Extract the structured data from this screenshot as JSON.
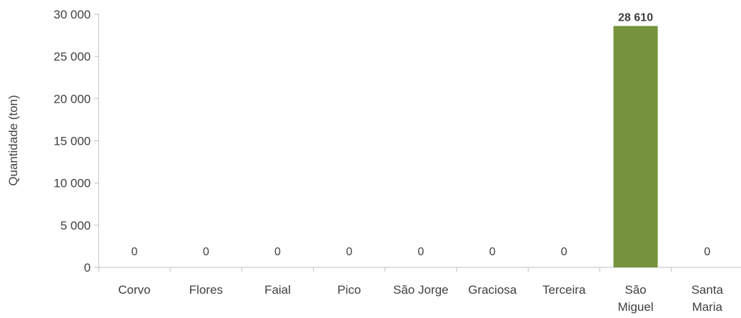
{
  "chart_data": {
    "type": "bar",
    "title": "",
    "xlabel": "",
    "ylabel": "Quantidade (ton)",
    "ylim": [
      0,
      30000
    ],
    "yticks": [
      0,
      5000,
      10000,
      15000,
      20000,
      25000,
      30000
    ],
    "ytick_labels": [
      "0",
      "5 000",
      "10 000",
      "15 000",
      "20 000",
      "25 000",
      "30 000"
    ],
    "categories": [
      [
        "Corvo"
      ],
      [
        "Flores"
      ],
      [
        "Faial"
      ],
      [
        "Pico"
      ],
      [
        "São Jorge"
      ],
      [
        "Graciosa"
      ],
      [
        "Terceira"
      ],
      [
        "São",
        "Miguel"
      ],
      [
        "Santa",
        "Maria"
      ]
    ],
    "values": [
      0,
      0,
      0,
      0,
      0,
      0,
      0,
      28610,
      0
    ],
    "value_labels": [
      "0",
      "0",
      "0",
      "0",
      "0",
      "0",
      "0",
      "28 610",
      "0"
    ],
    "bar_color": "#76923C",
    "axis_color": "#BFBFBF",
    "grid": false,
    "legend": "none"
  }
}
